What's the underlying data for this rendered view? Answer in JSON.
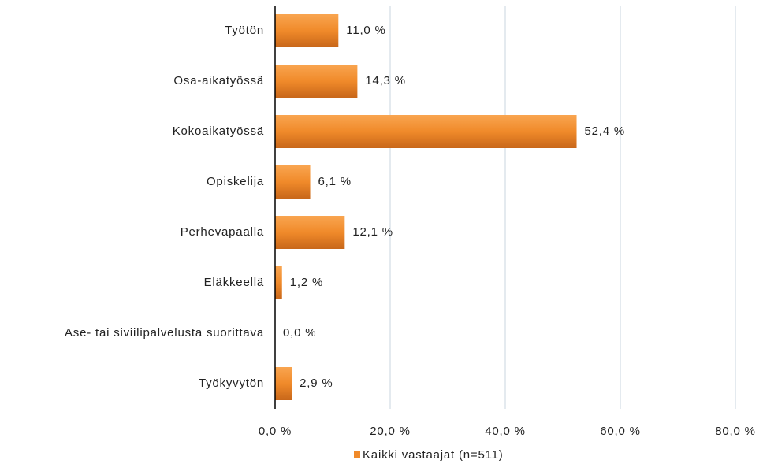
{
  "chart_data": {
    "type": "bar",
    "orientation": "horizontal",
    "categories": [
      "Työtön",
      "Osa-aikatyössä",
      "Kokoaikatyössä",
      "Opiskelija",
      "Perhevapaalla",
      "Eläkkeellä",
      "Ase- tai siviilipalvelusta suorittava",
      "Työkyvytön"
    ],
    "series": [
      {
        "name": "Kaikki vastaajat (n=511)",
        "color": "#f08a2a",
        "values": [
          11.0,
          14.3,
          52.4,
          6.1,
          12.1,
          1.2,
          0.0,
          2.9
        ],
        "value_labels": [
          "11,0 %",
          "14,3 %",
          "52,4 %",
          "6,1 %",
          "12,1 %",
          "1,2 %",
          "0,0 %",
          "2,9 %"
        ]
      }
    ],
    "xlim": [
      0,
      80
    ],
    "xticks": [
      {
        "value": 0,
        "label": "0,0 %"
      },
      {
        "value": 20,
        "label": "20,0 %"
      },
      {
        "value": 40,
        "label": "40,0 %"
      },
      {
        "value": 60,
        "label": "60,0 %"
      },
      {
        "value": 80,
        "label": "80,0 %"
      }
    ],
    "grid": true,
    "legend": "bottom"
  }
}
